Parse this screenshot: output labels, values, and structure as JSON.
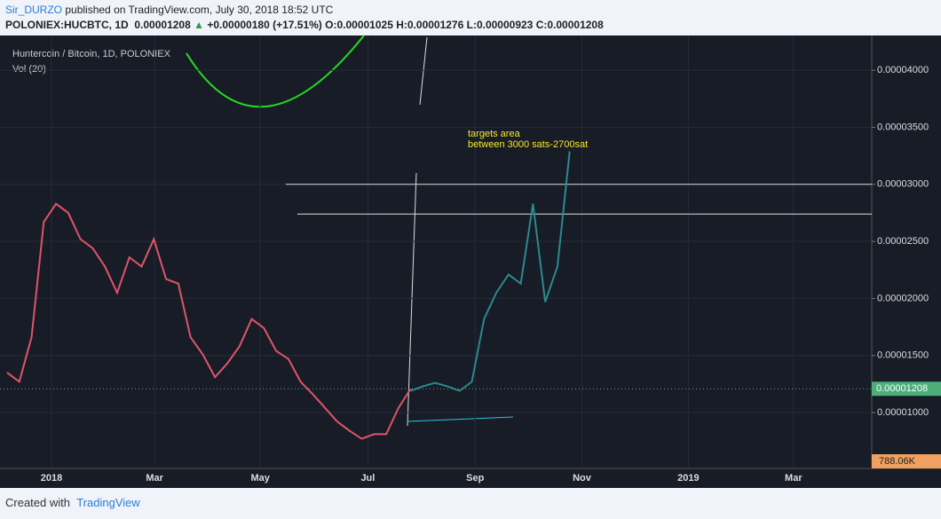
{
  "header": {
    "author": "Sir_DURZO",
    "published": "published on TradingView.com, July 30, 2018 18:52 UTC",
    "symbol": "POLONIEX:HUCBTC, 1D",
    "last": "0.00001208",
    "change": "+0.00000180 (+17.51%)",
    "open": "O:0.00001025",
    "high": "H:0.00001276",
    "low": "L:0.00000923",
    "close": "C:0.00001208"
  },
  "chart_data": {
    "type": "line",
    "title": "Huntercoin / Bitcoin, 1D, POLONIEX",
    "subtitle": "Vol (20)",
    "categories": [
      null,
      null,
      null,
      null,
      null,
      null,
      null,
      null,
      null,
      null,
      null,
      null,
      null,
      null,
      null,
      null,
      null,
      null,
      null,
      null,
      null,
      null,
      null,
      null,
      null,
      null,
      null,
      null,
      null,
      null,
      null,
      null,
      null,
      null,
      null,
      null,
      null,
      null,
      null,
      null,
      null,
      null,
      null,
      null,
      null,
      null,
      null
    ],
    "series": [
      {
        "color": "#e0546a",
        "values": [
          1.35e-05,
          1.27e-05,
          1.66e-05,
          2.67e-05,
          2.83e-05,
          2.75e-05,
          2.52e-05,
          2.44e-05,
          2.28e-05,
          2.05e-05,
          2.36e-05,
          2.28e-05,
          2.52e-05,
          2.17e-05,
          2.13e-05,
          1.66e-05,
          1.51e-05,
          1.31e-05,
          1.43e-05,
          1.58e-05,
          1.82e-05,
          1.74e-05,
          1.54e-05,
          1.47e-05,
          1.27e-05,
          1.16e-05,
          1.04e-05,
          9.2e-06,
          8.4e-06,
          7.7e-06,
          8.1e-06,
          8.1e-06,
          1.04e-05,
          1.208e-05,
          null,
          null,
          null,
          null,
          null,
          null,
          null,
          null,
          null,
          null,
          null,
          null,
          null
        ]
      },
      {
        "color": "#2a8a8f",
        "values": [
          null,
          null,
          null,
          null,
          null,
          null,
          null,
          null,
          null,
          null,
          null,
          null,
          null,
          null,
          null,
          null,
          null,
          null,
          null,
          null,
          null,
          null,
          null,
          null,
          null,
          null,
          null,
          null,
          null,
          null,
          null,
          null,
          null,
          1.19e-05,
          1.23e-05,
          1.26e-05,
          1.23e-05,
          1.19e-05,
          1.27e-05,
          1.82e-05,
          2.05e-05,
          2.21e-05,
          2.13e-05,
          2.83e-05,
          1.97e-05,
          2.28e-05,
          3.29e-05
        ]
      }
    ],
    "xlim": [
      -0.58,
      70.7
    ],
    "xticks": [
      {
        "value": 3.63,
        "label": "2018"
      },
      {
        "value": 12.06,
        "label": "Mar"
      },
      {
        "value": 20.7,
        "label": "May"
      },
      {
        "value": 29.5,
        "label": "Jul"
      },
      {
        "value": 38.27,
        "label": "Sep"
      },
      {
        "value": 47.0,
        "label": "Nov"
      },
      {
        "value": 55.7,
        "label": "2019"
      },
      {
        "value": 64.3,
        "label": "Mar"
      }
    ],
    "ylim": [
      5.1e-06,
      4.305e-05
    ],
    "yticks": [
      {
        "value": 1e-05,
        "label": "0.00001000"
      },
      {
        "value": 1.5e-05,
        "label": "0.00001500"
      },
      {
        "value": 2e-05,
        "label": "0.00002000"
      },
      {
        "value": 2.5e-05,
        "label": "0.00002500"
      },
      {
        "value": 3e-05,
        "label": "0.00003000"
      },
      {
        "value": 3.5e-05,
        "label": "0.00003500"
      },
      {
        "value": 4e-05,
        "label": "0.00004000"
      }
    ],
    "grid": true,
    "last_price": {
      "value": 1.208e-05,
      "label": "0.00001208"
    },
    "volume_label": "788.06K",
    "annotations": [
      "targets area",
      "between 3000 sats-2700sat"
    ],
    "target_levels": [
      3e-05,
      2.74e-05
    ]
  },
  "footer": {
    "text": "Created with",
    "brand": "TradingView"
  }
}
